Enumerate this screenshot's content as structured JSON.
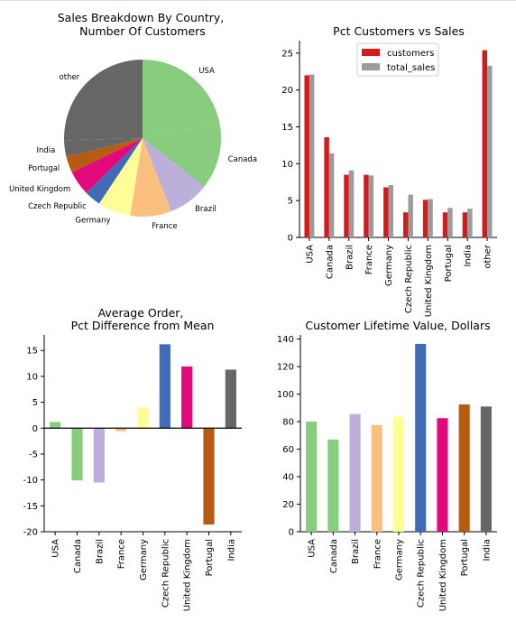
{
  "chart_data": [
    {
      "type": "pie",
      "title": "Sales Breakdown By Country,",
      "subtitle": "Number Of Customers",
      "categories": [
        "USA",
        "Canada",
        "Brazil",
        "France",
        "Germany",
        "Czech Republic",
        "United Kingdom",
        "Portugal",
        "India",
        "other"
      ],
      "values": [
        13,
        8,
        5,
        5,
        4,
        2,
        3,
        2,
        2,
        15
      ],
      "colors": [
        "#88cc7e",
        "#88cc7e",
        "#bcafd9",
        "#fbc07f",
        "#fefe96",
        "#416bb7",
        "#e3087c",
        "#b65b10",
        "#666666",
        "#666666"
      ]
    },
    {
      "type": "bar",
      "title": "Pct Customers vs Sales",
      "categories": [
        "USA",
        "Canada",
        "Brazil",
        "France",
        "Germany",
        "Czech Republic",
        "United Kingdom",
        "Portugal",
        "India",
        "other"
      ],
      "series": [
        {
          "name": "customers",
          "color": "#d7191c",
          "values": [
            22.0,
            13.6,
            8.5,
            8.5,
            6.8,
            3.4,
            5.1,
            3.4,
            3.4,
            25.4
          ]
        },
        {
          "name": "total_sales",
          "color": "#9c9c9c",
          "values": [
            22.1,
            11.4,
            9.1,
            8.4,
            7.1,
            5.8,
            5.2,
            4.0,
            3.9,
            23.3
          ]
        }
      ],
      "yticks": [
        0,
        5,
        10,
        15,
        20,
        25
      ],
      "ylim": [
        0,
        26.7
      ],
      "legend": "top-center",
      "grid": false
    },
    {
      "type": "bar",
      "title": "Average Order,",
      "subtitle": "Pct Difference from Mean",
      "categories": [
        "USA",
        "Canada",
        "Brazil",
        "France",
        "Germany",
        "Czech Republic",
        "United Kingdom",
        "Portugal",
        "India"
      ],
      "values": [
        1.2,
        -10.1,
        -10.5,
        -0.6,
        4.0,
        16.2,
        11.9,
        -18.6,
        11.3
      ],
      "colors": [
        "#88cc7e",
        "#88cc7e",
        "#bcafd9",
        "#fbc07f",
        "#fefe96",
        "#416bb7",
        "#e3087c",
        "#b65b10",
        "#666666"
      ],
      "yticks": [
        -20,
        -15,
        -10,
        -5,
        0,
        5,
        10,
        15
      ],
      "ylim": [
        -20,
        18
      ],
      "zero_line": true,
      "grid": false
    },
    {
      "type": "bar",
      "title": "Customer Lifetime Value, Dollars",
      "categories": [
        "USA",
        "Canada",
        "Brazil",
        "France",
        "Germany",
        "Czech Republic",
        "United Kingdom",
        "Portugal",
        "India"
      ],
      "values": [
        80,
        67,
        85.5,
        77.5,
        83.5,
        136.5,
        82.5,
        92.5,
        91
      ],
      "colors": [
        "#88cc7e",
        "#88cc7e",
        "#bcafd9",
        "#fbc07f",
        "#fefe96",
        "#416bb7",
        "#e3087c",
        "#b65b10",
        "#666666"
      ],
      "yticks": [
        0,
        20,
        40,
        60,
        80,
        100,
        120,
        140
      ],
      "ylim": [
        0,
        143
      ],
      "grid": false
    }
  ]
}
